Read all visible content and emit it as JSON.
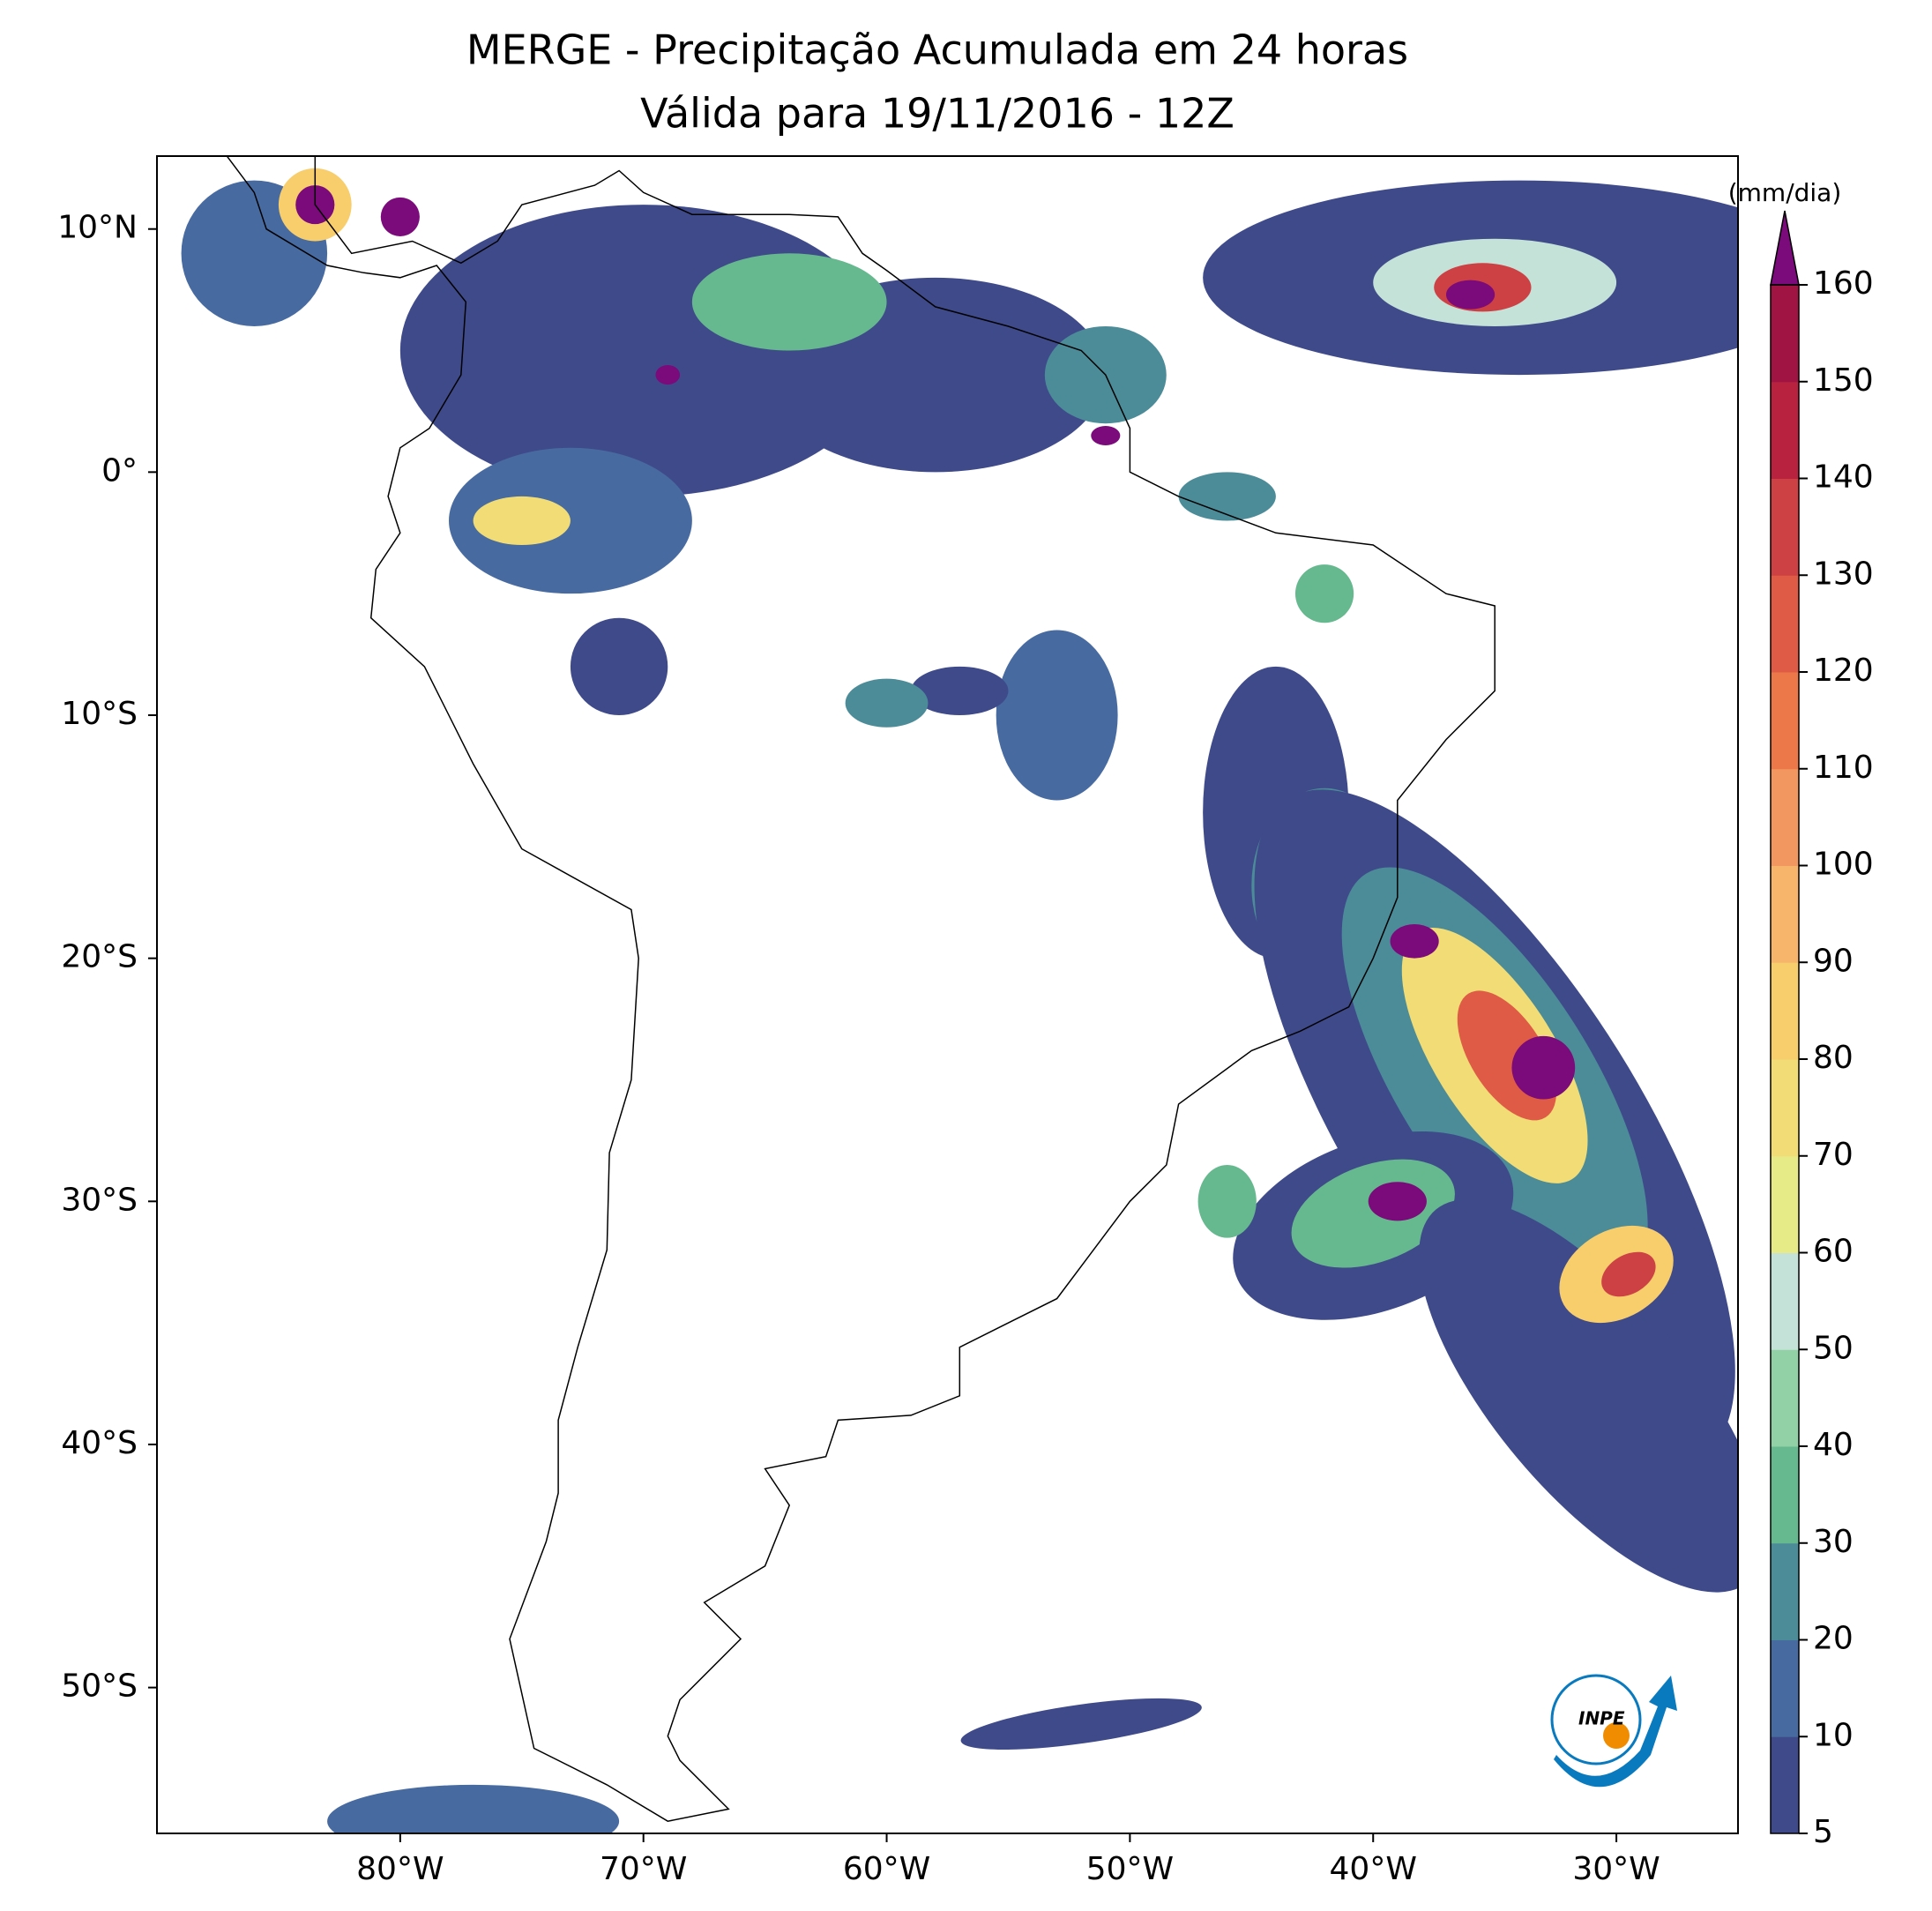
{
  "chart_data": {
    "type": "map",
    "title": "MERGE - Precipitação Acumulada em 24 horas",
    "subtitle": "Válida para 19/11/2016 - 12Z",
    "xlim": [
      -90,
      -25
    ],
    "ylim": [
      -56,
      13
    ],
    "xticks": [
      {
        "value": -80,
        "label": "80°W"
      },
      {
        "value": -70,
        "label": "70°W"
      },
      {
        "value": -60,
        "label": "60°W"
      },
      {
        "value": -50,
        "label": "50°W"
      },
      {
        "value": -40,
        "label": "40°W"
      },
      {
        "value": -30,
        "label": "30°W"
      }
    ],
    "yticks": [
      {
        "value": 10,
        "label": "10°N"
      },
      {
        "value": 0,
        "label": "0°"
      },
      {
        "value": -10,
        "label": "10°S"
      },
      {
        "value": -20,
        "label": "20°S"
      },
      {
        "value": -30,
        "label": "30°S"
      },
      {
        "value": -40,
        "label": "40°S"
      },
      {
        "value": -50,
        "label": "50°S"
      }
    ],
    "colorbar": {
      "label": "(mm/dia)",
      "ticks": [
        5,
        10,
        20,
        30,
        40,
        50,
        60,
        70,
        80,
        90,
        100,
        110,
        120,
        130,
        140,
        150,
        160
      ],
      "colors": [
        "#3f4a8a",
        "#476aa0",
        "#4b8c98",
        "#66b88e",
        "#92d0a6",
        "#c4e2d8",
        "#e6eb88",
        "#f1dc76",
        "#f8cd6c",
        "#f7b46b",
        "#f29760",
        "#ec784a",
        "#df5b45",
        "#cd4145",
        "#b8223e",
        "#a01443"
      ],
      "extend_color": "#7b0a7a"
    },
    "logo_text": "INPE"
  }
}
